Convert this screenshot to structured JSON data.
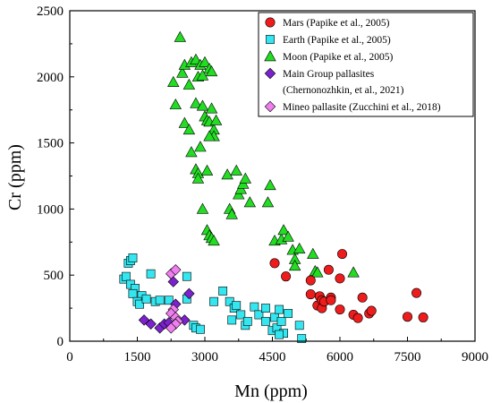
{
  "chart_data": {
    "type": "scatter",
    "xlabel": "Mn (ppm)",
    "ylabel": "Cr (ppm)",
    "xlim": [
      0,
      9000
    ],
    "ylim": [
      0,
      2500
    ],
    "xticks": [
      0,
      1500,
      3000,
      4500,
      6000,
      7500,
      9000
    ],
    "yticks": [
      0,
      500,
      1000,
      1500,
      2000,
      2500
    ],
    "grid": false,
    "legend_position": "top-right",
    "series": [
      {
        "name": "Mars (Papike et al., 2005)",
        "marker": "circle",
        "color": "#ee1c1c",
        "points": [
          [
            4550,
            590
          ],
          [
            4800,
            490
          ],
          [
            5350,
            460
          ],
          [
            5350,
            355
          ],
          [
            5500,
            270
          ],
          [
            5550,
            340
          ],
          [
            5600,
            310
          ],
          [
            5600,
            250
          ],
          [
            5650,
            300
          ],
          [
            5750,
            540
          ],
          [
            5800,
            330
          ],
          [
            5800,
            310
          ],
          [
            6000,
            475
          ],
          [
            6000,
            240
          ],
          [
            6050,
            660
          ],
          [
            6300,
            200
          ],
          [
            6400,
            175
          ],
          [
            6500,
            330
          ],
          [
            6650,
            210
          ],
          [
            6700,
            230
          ],
          [
            7500,
            185
          ],
          [
            7700,
            365
          ],
          [
            7850,
            180
          ]
        ]
      },
      {
        "name": "Earth (Papike et al., 2005)",
        "marker": "square",
        "color": "#33e6f0",
        "points": [
          [
            1200,
            470
          ],
          [
            1250,
            490
          ],
          [
            1300,
            590
          ],
          [
            1350,
            610
          ],
          [
            1400,
            630
          ],
          [
            1350,
            430
          ],
          [
            1450,
            400
          ],
          [
            1400,
            360
          ],
          [
            1600,
            345
          ],
          [
            1500,
            300
          ],
          [
            1550,
            280
          ],
          [
            1700,
            320
          ],
          [
            1800,
            510
          ],
          [
            1900,
            300
          ],
          [
            2000,
            310
          ],
          [
            2200,
            310
          ],
          [
            2600,
            320
          ],
          [
            2600,
            490
          ],
          [
            2750,
            120
          ],
          [
            2800,
            100
          ],
          [
            2900,
            90
          ],
          [
            3200,
            300
          ],
          [
            3400,
            380
          ],
          [
            3550,
            300
          ],
          [
            3650,
            250
          ],
          [
            3700,
            270
          ],
          [
            3800,
            200
          ],
          [
            3900,
            120
          ],
          [
            3950,
            150
          ],
          [
            3600,
            160
          ],
          [
            4100,
            260
          ],
          [
            4200,
            200
          ],
          [
            4350,
            150
          ],
          [
            4350,
            250
          ],
          [
            4500,
            80
          ],
          [
            4550,
            180
          ],
          [
            4600,
            100
          ],
          [
            4650,
            240
          ],
          [
            4700,
            150
          ],
          [
            4750,
            60
          ],
          [
            4850,
            210
          ],
          [
            4650,
            50
          ],
          [
            5100,
            120
          ],
          [
            5150,
            20
          ]
        ]
      },
      {
        "name": "Moon (Papike et al., 2005)",
        "marker": "triangle",
        "color": "#22dd22",
        "points": [
          [
            2450,
            2300
          ],
          [
            2300,
            1960
          ],
          [
            2500,
            2030
          ],
          [
            2550,
            2090
          ],
          [
            2650,
            1940
          ],
          [
            2700,
            2110
          ],
          [
            2800,
            2130
          ],
          [
            2850,
            2000
          ],
          [
            2900,
            2090
          ],
          [
            3000,
            2110
          ],
          [
            3100,
            2060
          ],
          [
            3150,
            2040
          ],
          [
            2950,
            2010
          ],
          [
            2350,
            1790
          ],
          [
            2550,
            1650
          ],
          [
            2650,
            1600
          ],
          [
            2800,
            1800
          ],
          [
            2950,
            1780
          ],
          [
            3000,
            1700
          ],
          [
            3050,
            1670
          ],
          [
            3100,
            1660
          ],
          [
            3150,
            1760
          ],
          [
            3200,
            1600
          ],
          [
            3250,
            1670
          ],
          [
            3200,
            1550
          ],
          [
            3100,
            1550
          ],
          [
            2900,
            1470
          ],
          [
            2700,
            1430
          ],
          [
            2800,
            1300
          ],
          [
            2850,
            1270
          ],
          [
            2850,
            1230
          ],
          [
            3050,
            1290
          ],
          [
            2950,
            1000
          ],
          [
            3050,
            840
          ],
          [
            3100,
            800
          ],
          [
            3150,
            780
          ],
          [
            3200,
            760
          ],
          [
            3500,
            1260
          ],
          [
            3550,
            1000
          ],
          [
            3600,
            960
          ],
          [
            3700,
            1290
          ],
          [
            3750,
            1110
          ],
          [
            3800,
            1150
          ],
          [
            3850,
            1190
          ],
          [
            3900,
            1230
          ],
          [
            4000,
            1050
          ],
          [
            4400,
            1050
          ],
          [
            4450,
            1180
          ],
          [
            4550,
            760
          ],
          [
            4700,
            770
          ],
          [
            4750,
            840
          ],
          [
            4850,
            790
          ],
          [
            4950,
            690
          ],
          [
            5000,
            620
          ],
          [
            5000,
            570
          ],
          [
            5100,
            700
          ],
          [
            5400,
            660
          ],
          [
            5450,
            530
          ],
          [
            5500,
            520
          ],
          [
            6300,
            520
          ]
        ]
      },
      {
        "name": "Main Group pallasites",
        "name_line2": "(Chernonozhkin, et al., 2021)",
        "marker": "diamond",
        "color": "#7b22cc",
        "points": [
          [
            1650,
            160
          ],
          [
            1800,
            130
          ],
          [
            2000,
            100
          ],
          [
            2100,
            130
          ],
          [
            2200,
            140
          ],
          [
            2300,
            450
          ],
          [
            2650,
            360
          ],
          [
            2550,
            160
          ],
          [
            2350,
            280
          ]
        ]
      },
      {
        "name": "Mineo pallasite (Zucchini et al., 2018)",
        "marker": "diamond",
        "color": "#f07ef0",
        "points": [
          [
            2250,
            510
          ],
          [
            2350,
            540
          ],
          [
            2300,
            240
          ],
          [
            2250,
            210
          ],
          [
            2350,
            180
          ],
          [
            2400,
            150
          ],
          [
            2350,
            130
          ],
          [
            2250,
            100
          ]
        ]
      }
    ]
  }
}
